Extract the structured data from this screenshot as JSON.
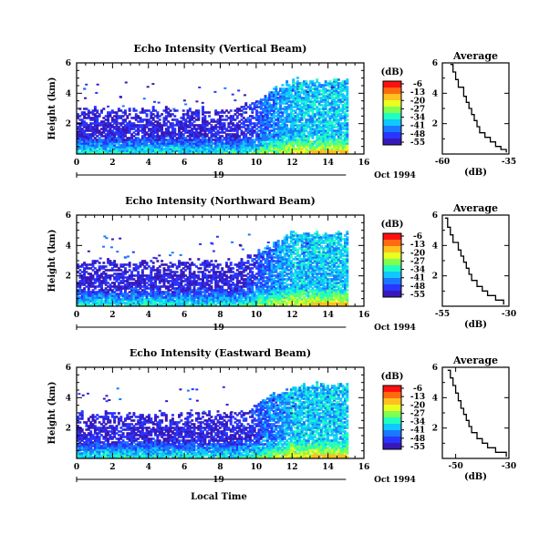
{
  "figure": {
    "bottom_label": "Local Time",
    "colorbar": {
      "unit": "(dB)",
      "ticks": [
        "-6",
        "-13",
        "-20",
        "-27",
        "-34",
        "-41",
        "-48",
        "-55"
      ],
      "colors": [
        "#ff1010",
        "#ff6a10",
        "#ffc020",
        "#e8ff20",
        "#80ff50",
        "#20ffc0",
        "#10c8ff",
        "#1a78ff",
        "#2836ff",
        "#3818b8"
      ]
    }
  },
  "chart_data": [
    {
      "type": "heatmap",
      "title": "Echo Intensity (Vertical Beam)",
      "ylabel": "Height (km)",
      "xlim": [
        0,
        16
      ],
      "ylim": [
        0,
        6
      ],
      "x_ticks": [
        "0",
        "2",
        "4",
        "6",
        "8",
        "10",
        "12",
        "14",
        "16"
      ],
      "y_ticks": [
        "2",
        "4",
        "6"
      ],
      "date_day": "19",
      "date_month_year": "Oct 1994",
      "value_range_db": [
        -55,
        -6
      ]
    },
    {
      "type": "line",
      "title": "Average",
      "xlabel": "(dB)",
      "xlim": [
        -60,
        -35
      ],
      "ylim": [
        0,
        6
      ],
      "x_ticks": [
        "-60",
        "-35"
      ],
      "y_ticks": [
        "2",
        "4",
        "6"
      ],
      "x": [
        -57,
        -56,
        -55,
        -54,
        -52,
        -51,
        -50,
        -49,
        -48,
        -47,
        -46,
        -44,
        -42,
        -40,
        -38,
        -36
      ],
      "y": [
        5.9,
        5.4,
        4.9,
        4.4,
        3.8,
        3.4,
        3.0,
        2.6,
        2.2,
        1.8,
        1.4,
        1.1,
        0.8,
        0.5,
        0.3,
        0.1
      ]
    },
    {
      "type": "heatmap",
      "title": "Echo Intensity (Northward Beam)",
      "ylabel": "Height (km)",
      "xlim": [
        0,
        16
      ],
      "ylim": [
        0,
        6
      ],
      "x_ticks": [
        "0",
        "2",
        "4",
        "6",
        "8",
        "10",
        "12",
        "14",
        "16"
      ],
      "y_ticks": [
        "2",
        "4",
        "6"
      ],
      "date_day": "19",
      "date_month_year": "Oct 1994",
      "value_range_db": [
        -55,
        -6
      ]
    },
    {
      "type": "line",
      "title": "Average",
      "xlabel": "(dB)",
      "xlim": [
        -55,
        -30
      ],
      "ylim": [
        0,
        6
      ],
      "x_ticks": [
        "-55",
        "-30"
      ],
      "y_ticks": [
        "2",
        "4",
        "6"
      ],
      "x": [
        -54,
        -53,
        -52,
        -51,
        -49,
        -48,
        -47,
        -46,
        -45,
        -44,
        -42,
        -40,
        -38,
        -35,
        -32
      ],
      "y": [
        5.8,
        5.2,
        4.7,
        4.2,
        3.7,
        3.3,
        2.9,
        2.5,
        2.1,
        1.7,
        1.3,
        1.0,
        0.7,
        0.4,
        0.1
      ]
    },
    {
      "type": "heatmap",
      "title": "Echo Intensity (Eastward Beam)",
      "ylabel": "Height (km)",
      "xlim": [
        0,
        16
      ],
      "ylim": [
        0,
        6
      ],
      "x_ticks": [
        "0",
        "2",
        "4",
        "6",
        "8",
        "10",
        "12",
        "14",
        "16"
      ],
      "y_ticks": [
        "2",
        "4",
        "6"
      ],
      "date_day": "19",
      "date_month_year": "Oct 1994",
      "value_range_db": [
        -55,
        -6
      ]
    },
    {
      "type": "line",
      "title": "Average",
      "xlabel": "(dB)",
      "xlim": [
        -55,
        -30
      ],
      "ylim": [
        0,
        6
      ],
      "x_ticks": [
        "-50",
        "-30"
      ],
      "y_ticks": [
        "2",
        "4",
        "6"
      ],
      "x": [
        -53,
        -52,
        -51,
        -50,
        -49,
        -48,
        -47,
        -46,
        -45,
        -44,
        -42,
        -40,
        -38,
        -35,
        -31
      ],
      "y": [
        5.8,
        5.3,
        4.8,
        4.3,
        3.8,
        3.3,
        2.9,
        2.5,
        2.1,
        1.7,
        1.3,
        1.0,
        0.7,
        0.4,
        0.1
      ]
    }
  ]
}
